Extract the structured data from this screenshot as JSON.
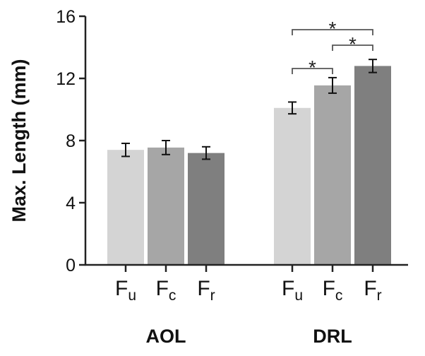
{
  "chart_data": {
    "type": "bar",
    "ylabel": "Max. Length (mm)",
    "ylim": [
      0,
      16
    ],
    "yticks": [
      "0",
      "4",
      "8",
      "12",
      "16"
    ],
    "grid": false,
    "groups": [
      {
        "name": "AOL",
        "bars": [
          {
            "label": "F",
            "sub": "u",
            "value": 7.4,
            "error": 0.42,
            "color": "#d4d4d4"
          },
          {
            "label": "F",
            "sub": "c",
            "value": 7.55,
            "error": 0.45,
            "color": "#a6a6a6"
          },
          {
            "label": "F",
            "sub": "r",
            "value": 7.2,
            "error": 0.4,
            "color": "#7f7f7f"
          }
        ]
      },
      {
        "name": "DRL",
        "bars": [
          {
            "label": "F",
            "sub": "u",
            "value": 10.1,
            "error": 0.38,
            "color": "#d4d4d4"
          },
          {
            "label": "F",
            "sub": "c",
            "value": 11.55,
            "error": 0.5,
            "color": "#a6a6a6"
          },
          {
            "label": "F",
            "sub": "r",
            "value": 12.8,
            "error": 0.42,
            "color": "#7f7f7f"
          }
        ]
      }
    ],
    "significance": [
      {
        "group": 1,
        "from": 0,
        "to": 1,
        "label": "*"
      },
      {
        "group": 1,
        "from": 1,
        "to": 2,
        "label": "*"
      },
      {
        "group": 1,
        "from": 0,
        "to": 2,
        "label": "*"
      }
    ]
  }
}
